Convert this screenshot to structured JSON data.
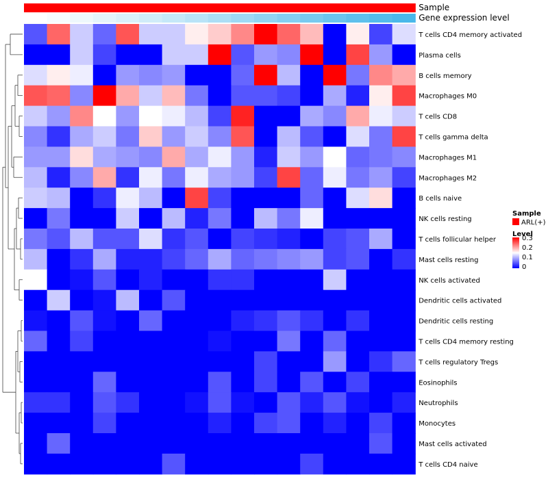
{
  "chart_data": {
    "type": "heatmap",
    "title": "",
    "rows": [
      "T cells CD4 memory activated",
      "Plasma cells",
      "B cells memory",
      "Macrophages M0",
      "T cells CD8",
      "T cells gamma delta",
      "Macrophages M1",
      "Macrophages M2",
      "B cells naive",
      "NK cells resting",
      "T cells follicular helper",
      "Mast cells resting",
      "NK cells activated",
      "Dendritic cells activated",
      "Dendritic cells resting",
      "T cells CD4 memory resting",
      "T cells regulatory  Tregs",
      "Eosinophils",
      "Neutrophils",
      "Monocytes",
      "Mast cells activated",
      "T cells CD4 naive"
    ],
    "n_columns": 17,
    "values": [
      [
        0.05,
        0.24,
        0.12,
        0.06,
        0.25,
        0.12,
        0.12,
        0.16,
        0.18,
        0.22,
        0.3,
        0.24,
        0.19,
        0.0,
        0.16,
        0.04,
        0.13
      ],
      [
        0.0,
        0.0,
        0.12,
        0.04,
        0.0,
        0.0,
        0.12,
        0.12,
        0.3,
        0.05,
        0.09,
        0.08,
        0.3,
        0.0,
        0.26,
        0.09,
        0.0
      ],
      [
        0.13,
        0.16,
        0.14,
        0.0,
        0.09,
        0.08,
        0.09,
        0.0,
        0.0,
        0.06,
        0.3,
        0.11,
        0.0,
        0.3,
        0.07,
        0.22,
        0.2
      ],
      [
        0.25,
        0.24,
        0.08,
        0.3,
        0.2,
        0.12,
        0.19,
        0.07,
        0.0,
        0.05,
        0.05,
        0.04,
        0.0,
        0.1,
        0.02,
        0.16,
        0.26
      ],
      [
        0.12,
        0.09,
        0.22,
        0.15,
        0.09,
        0.15,
        0.14,
        0.11,
        0.04,
        0.28,
        0.0,
        0.0,
        0.1,
        0.08,
        0.2,
        0.14,
        0.12
      ],
      [
        0.08,
        0.03,
        0.1,
        0.12,
        0.07,
        0.18,
        0.09,
        0.12,
        0.08,
        0.25,
        0.0,
        0.11,
        0.05,
        0.0,
        0.13,
        0.07,
        0.26
      ],
      [
        0.09,
        0.09,
        0.17,
        0.1,
        0.09,
        0.08,
        0.2,
        0.1,
        0.14,
        0.09,
        0.02,
        0.12,
        0.09,
        0.15,
        0.06,
        0.07,
        0.08
      ],
      [
        0.11,
        0.02,
        0.08,
        0.2,
        0.03,
        0.14,
        0.07,
        0.14,
        0.1,
        0.09,
        0.04,
        0.26,
        0.06,
        0.14,
        0.07,
        0.09,
        0.04
      ],
      [
        0.12,
        0.11,
        0.0,
        0.03,
        0.14,
        0.11,
        0.0,
        0.26,
        0.04,
        0.0,
        0.0,
        0.0,
        0.06,
        0.0,
        0.13,
        0.17,
        0.0
      ],
      [
        0.0,
        0.07,
        0.0,
        0.0,
        0.12,
        0.0,
        0.11,
        0.02,
        0.07,
        0.0,
        0.11,
        0.07,
        0.14,
        0.0,
        0.0,
        0.0,
        0.0
      ],
      [
        0.07,
        0.05,
        0.11,
        0.05,
        0.05,
        0.13,
        0.03,
        0.05,
        0.0,
        0.04,
        0.03,
        0.02,
        0.0,
        0.04,
        0.05,
        0.1,
        0.0
      ],
      [
        0.11,
        0.0,
        0.03,
        0.1,
        0.02,
        0.02,
        0.04,
        0.06,
        0.1,
        0.06,
        0.07,
        0.08,
        0.09,
        0.04,
        0.05,
        0.0,
        0.03
      ],
      [
        0.15,
        0.0,
        0.01,
        0.05,
        0.0,
        0.02,
        0.0,
        0.0,
        0.03,
        0.03,
        0.0,
        0.0,
        0.0,
        0.12,
        0.0,
        0.0,
        0.0
      ],
      [
        0.0,
        0.12,
        0.0,
        0.01,
        0.11,
        0.0,
        0.05,
        0.0,
        0.0,
        0.0,
        0.0,
        0.0,
        0.0,
        0.0,
        0.0,
        0.0,
        0.0
      ],
      [
        0.01,
        0.0,
        0.05,
        0.01,
        0.0,
        0.06,
        0.0,
        0.0,
        0.0,
        0.02,
        0.03,
        0.05,
        0.03,
        0.0,
        0.03,
        0.0,
        0.0
      ],
      [
        0.06,
        0.0,
        0.04,
        0.0,
        0.0,
        0.0,
        0.0,
        0.0,
        0.01,
        0.0,
        0.0,
        0.07,
        0.0,
        0.06,
        0.0,
        0.0,
        0.0
      ],
      [
        0.0,
        0.0,
        0.0,
        0.0,
        0.0,
        0.0,
        0.0,
        0.0,
        0.0,
        0.0,
        0.04,
        0.0,
        0.0,
        0.09,
        0.0,
        0.03,
        0.06
      ],
      [
        0.0,
        0.0,
        0.0,
        0.06,
        0.0,
        0.0,
        0.0,
        0.0,
        0.05,
        0.0,
        0.04,
        0.0,
        0.05,
        0.0,
        0.04,
        0.0,
        0.0
      ],
      [
        0.03,
        0.03,
        0.0,
        0.05,
        0.03,
        0.0,
        0.0,
        0.01,
        0.05,
        0.01,
        0.0,
        0.05,
        0.02,
        0.05,
        0.01,
        0.0,
        0.02
      ],
      [
        0.0,
        0.0,
        0.0,
        0.04,
        0.0,
        0.0,
        0.0,
        0.0,
        0.02,
        0.0,
        0.04,
        0.05,
        0.0,
        0.02,
        0.0,
        0.04,
        0.0
      ],
      [
        0.0,
        0.06,
        0.0,
        0.0,
        0.0,
        0.0,
        0.0,
        0.0,
        0.0,
        0.0,
        0.0,
        0.0,
        0.0,
        0.0,
        0.0,
        0.05,
        0.0
      ],
      [
        0.0,
        0.0,
        0.0,
        0.0,
        0.0,
        0.0,
        0.05,
        0.0,
        0.0,
        0.0,
        0.0,
        0.0,
        0.04,
        0.0,
        0.0,
        0.0,
        0.0
      ]
    ],
    "color_scale": {
      "low": "#0000FF",
      "mid": "#FFFFFF",
      "high": "#FF0000",
      "min": 0,
      "mid_value": 0.15,
      "max": 0.3
    },
    "annotations": [
      {
        "label": "Sample",
        "colors": [
          "#FF0000",
          "#FF0000",
          "#FF0000",
          "#FF0000",
          "#FF0000",
          "#FF0000",
          "#FF0000",
          "#FF0000",
          "#FF0000",
          "#FF0000",
          "#FF0000",
          "#FF0000",
          "#FF0000",
          "#FF0000",
          "#FF0000",
          "#FF0000",
          "#FF0000"
        ]
      },
      {
        "label": "Gene expression level",
        "colors": [
          "#FFFFFF",
          "#F7FCFE",
          "#EEF8FC",
          "#E4F4FB",
          "#DAF0FA",
          "#D0ECF9",
          "#C5E8F8",
          "#B9E3F7",
          "#ACDEF5",
          "#9FD9F4",
          "#92D4F2",
          "#85CFF1",
          "#78CAEF",
          "#6BC5EE",
          "#5FC0EC",
          "#54BCEB",
          "#4AB8EA"
        ]
      }
    ],
    "legend": {
      "sample": {
        "title": "Sample",
        "items": [
          {
            "label": "ARL(+)",
            "color": "#FF0000"
          }
        ]
      },
      "level": {
        "title": "Level",
        "ticks": [
          "0.3",
          "0.2",
          "0.1",
          "0"
        ]
      }
    }
  }
}
